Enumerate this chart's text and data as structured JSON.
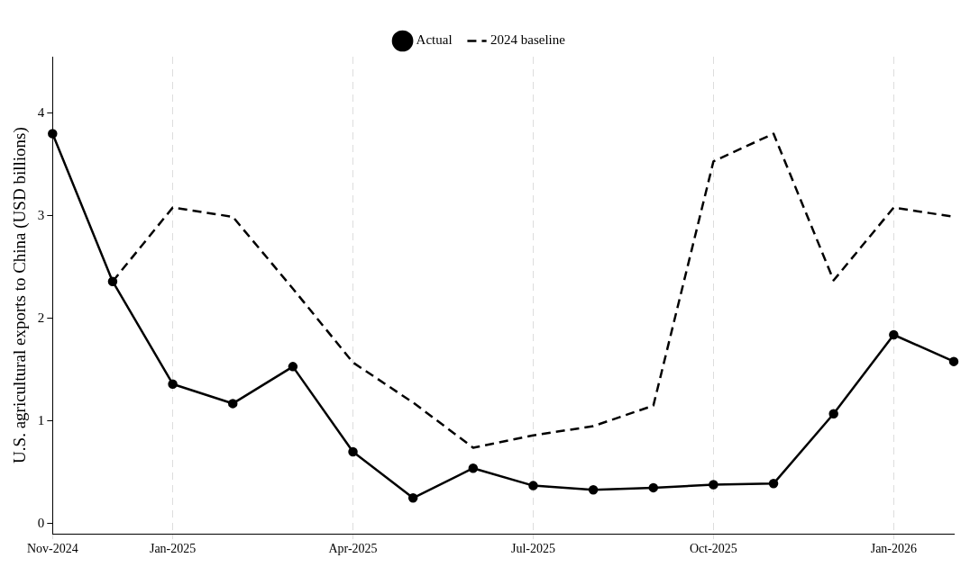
{
  "chart_data": {
    "type": "line",
    "ylabel": "U.S. agricultural exports to China (USD billions)",
    "categories": [
      "Nov-2024",
      null,
      "Jan-2025",
      null,
      null,
      "Apr-2025",
      null,
      null,
      "Jul-2025",
      null,
      null,
      "Oct-2025",
      null,
      null,
      "Jan-2026",
      null
    ],
    "series": [
      {
        "name": "Actual",
        "color": "#000000",
        "marker": "circle",
        "line_style": "solid",
        "values": [
          3.8,
          2.36,
          1.36,
          1.17,
          1.53,
          0.7,
          0.25,
          0.54,
          0.37,
          0.33,
          0.35,
          0.38,
          0.39,
          1.07,
          1.84,
          1.58
        ]
      },
      {
        "name": "2024 baseline",
        "color": "#000000",
        "marker": "none",
        "line_style": "dashed",
        "values": [
          null,
          2.36,
          3.08,
          2.99,
          2.29,
          1.57,
          1.18,
          0.74,
          0.86,
          0.95,
          1.15,
          3.53,
          3.8,
          2.37,
          3.08,
          2.99
        ]
      }
    ],
    "ylim": [
      -0.1,
      4.55
    ],
    "yticks": [
      0,
      1,
      2,
      3,
      4
    ],
    "grid": "x",
    "legend": "top"
  }
}
